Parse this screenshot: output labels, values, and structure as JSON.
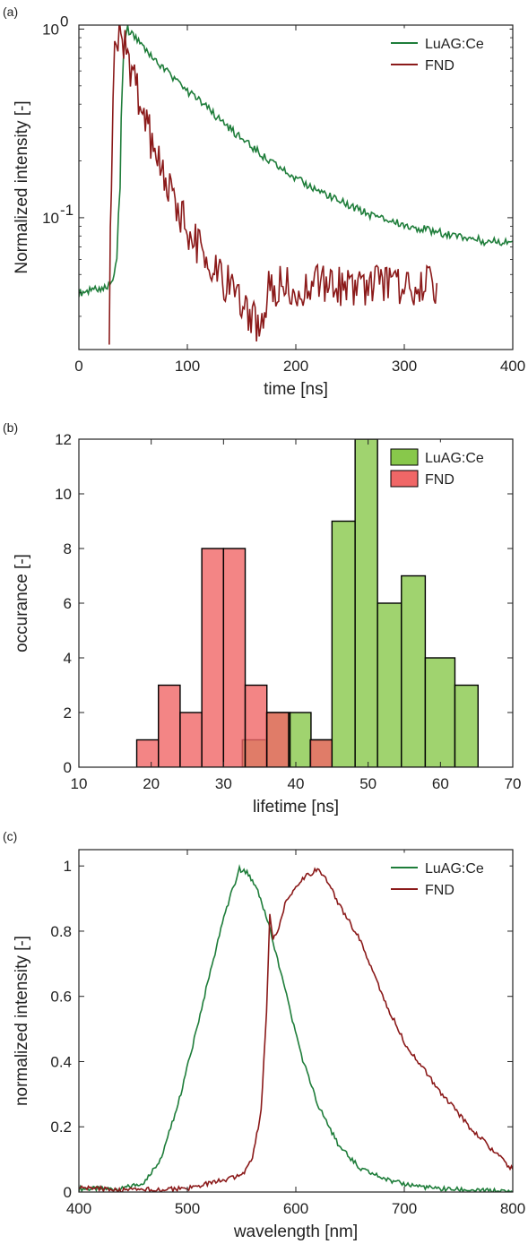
{
  "chart_data": [
    {
      "panel_label": "(a)",
      "type": "line",
      "xlabel": "time [ns]",
      "ylabel": "Normalized intensity [-]",
      "xlim": [
        0,
        400
      ],
      "ylim": [
        0.02,
        1.05
      ],
      "yscale": "log",
      "xticks": [
        0,
        100,
        200,
        300,
        400
      ],
      "yticks": [
        {
          "value": 0.1,
          "label": "10",
          "exp": "-1"
        },
        {
          "value": 1,
          "label": "10",
          "exp": "0"
        }
      ],
      "legend_position": "top-right",
      "series": [
        {
          "name": "LuAG:Ce",
          "color": "#1e7d3a",
          "x": [
            0,
            10,
            20,
            30,
            35,
            38,
            40,
            42,
            45,
            50,
            60,
            70,
            80,
            100,
            125,
            150,
            175,
            200,
            225,
            250,
            275,
            300,
            325,
            350,
            375,
            400
          ],
          "y": [
            0.04,
            0.041,
            0.042,
            0.045,
            0.06,
            0.15,
            0.5,
            0.85,
            1.0,
            0.92,
            0.78,
            0.68,
            0.6,
            0.47,
            0.35,
            0.26,
            0.2,
            0.16,
            0.135,
            0.115,
            0.1,
            0.092,
            0.085,
            0.08,
            0.075,
            0.075
          ]
        },
        {
          "name": "FND",
          "color": "#8b1a1a",
          "x": [
            28,
            30,
            33,
            36,
            40,
            45,
            50,
            60,
            70,
            80,
            90,
            100,
            110,
            120,
            130,
            140,
            150,
            160,
            170,
            175,
            200,
            260,
            330
          ],
          "y": [
            0.02,
            0.15,
            0.7,
            0.9,
            0.9,
            0.7,
            0.55,
            0.35,
            0.22,
            0.15,
            0.12,
            0.09,
            0.07,
            0.06,
            0.05,
            0.045,
            0.035,
            0.03,
            0.025,
            0.045,
            0.045,
            0.045,
            0.045
          ]
        }
      ]
    },
    {
      "panel_label": "(b)",
      "type": "bar",
      "xlabel": "lifetime [ns]",
      "ylabel": "occurance [-]",
      "xlim": [
        10,
        70
      ],
      "ylim": [
        0,
        12
      ],
      "xticks": [
        10,
        20,
        30,
        40,
        50,
        60,
        70
      ],
      "yticks": [
        0,
        2,
        4,
        6,
        8,
        10,
        12
      ],
      "legend_position": "top-right",
      "series": [
        {
          "name": "LuAG:Ce",
          "color": "#88c84b",
          "bins": [
            [
              32.6,
              35.9,
              1
            ],
            [
              35.9,
              39.2,
              2
            ],
            [
              39.2,
              42.1,
              2
            ],
            [
              42.1,
              45.0,
              1
            ],
            [
              45.0,
              48.2,
              9
            ],
            [
              48.2,
              51.3,
              12
            ],
            [
              51.3,
              54.6,
              6
            ],
            [
              54.6,
              57.9,
              7
            ],
            [
              57.9,
              62.0,
              4
            ],
            [
              62.0,
              65.2,
              3
            ]
          ]
        },
        {
          "name": "FND",
          "color": "#f06767",
          "bins": [
            [
              18.0,
              21.0,
              1
            ],
            [
              21.0,
              24.0,
              3
            ],
            [
              24.0,
              27.0,
              2
            ],
            [
              27.0,
              30.0,
              8
            ],
            [
              30.0,
              33.0,
              8
            ],
            [
              33.0,
              36.0,
              3
            ],
            [
              36.0,
              39.0,
              2
            ],
            [
              39.0,
              42.0,
              0
            ],
            [
              42.0,
              45.0,
              1
            ]
          ]
        }
      ]
    },
    {
      "panel_label": "(c)",
      "type": "line",
      "xlabel": "wavelength [nm]",
      "ylabel": "normalized intensity [-]",
      "xlim": [
        400,
        800
      ],
      "ylim": [
        0,
        1.05
      ],
      "xticks": [
        400,
        500,
        600,
        700,
        800
      ],
      "yticks": [
        0,
        0.2,
        0.4,
        0.6,
        0.8,
        1
      ],
      "legend_position": "top-right",
      "series": [
        {
          "name": "LuAG:Ce",
          "color": "#1e7d3a",
          "x": [
            400,
            440,
            460,
            475,
            490,
            505,
            520,
            535,
            548,
            555,
            565,
            575,
            590,
            605,
            620,
            640,
            660,
            690,
            730,
            770,
            800
          ],
          "y": [
            0.01,
            0.01,
            0.03,
            0.1,
            0.25,
            0.45,
            0.66,
            0.86,
            0.99,
            0.98,
            0.92,
            0.82,
            0.62,
            0.42,
            0.27,
            0.14,
            0.07,
            0.03,
            0.01,
            0.005,
            0.0
          ]
        },
        {
          "name": "FND",
          "color": "#8b1a1a",
          "x": [
            400,
            410,
            420,
            440,
            500,
            550,
            560,
            568,
            573,
            576,
            579,
            583,
            590,
            600,
            610,
            620,
            630,
            640,
            660,
            680,
            700,
            730,
            760,
            790,
            800
          ],
          "y": [
            0.01,
            0.015,
            0.01,
            0.005,
            0.01,
            0.05,
            0.1,
            0.25,
            0.55,
            0.85,
            0.78,
            0.8,
            0.88,
            0.94,
            0.97,
            0.99,
            0.95,
            0.88,
            0.77,
            0.6,
            0.46,
            0.32,
            0.2,
            0.1,
            0.07
          ]
        }
      ]
    }
  ]
}
